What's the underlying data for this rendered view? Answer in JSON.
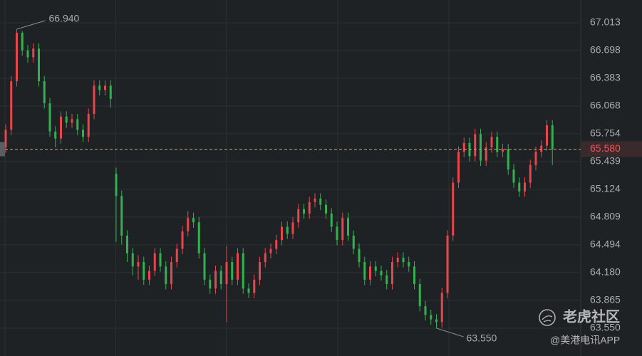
{
  "chart_data": {
    "type": "candlestick",
    "up_color": "#e8454d",
    "down_color": "#33b14f",
    "ylim": [
      63.235,
      67.271
    ],
    "yticks": [
      67.013,
      66.698,
      66.383,
      66.068,
      65.754,
      65.439,
      65.124,
      64.809,
      64.494,
      {
        "value": 64.18,
        "label": "64.180"
      },
      63.865,
      {
        "value": 63.55,
        "label": "63.550"
      }
    ],
    "grid": true,
    "last": {
      "value": 65.58,
      "label": "65.580"
    },
    "high_label": {
      "value": 66.94,
      "label": "66.940"
    },
    "low_label": {
      "value": 63.55,
      "label": "63.550"
    },
    "candles": [
      [
        65.6,
        65.86,
        65.54,
        65.8
      ],
      [
        65.8,
        66.41,
        65.74,
        66.35
      ],
      [
        66.35,
        66.94,
        66.29,
        66.9
      ],
      [
        66.9,
        66.92,
        66.64,
        66.7
      ],
      [
        66.7,
        66.76,
        66.56,
        66.62
      ],
      [
        66.62,
        66.78,
        66.56,
        66.72
      ],
      [
        66.72,
        66.78,
        66.29,
        66.35
      ],
      [
        66.35,
        66.41,
        66.04,
        66.1
      ],
      [
        66.1,
        66.16,
        65.72,
        65.78
      ],
      [
        65.78,
        65.84,
        65.6,
        65.7
      ],
      [
        65.7,
        66.01,
        65.64,
        65.95
      ],
      [
        65.95,
        66.01,
        65.82,
        65.88
      ],
      [
        65.88,
        65.98,
        65.82,
        65.92
      ],
      [
        65.92,
        65.98,
        65.74,
        65.8
      ],
      [
        65.8,
        65.86,
        65.66,
        65.72
      ],
      [
        65.72,
        66.04,
        65.66,
        65.98
      ],
      [
        65.98,
        66.36,
        65.92,
        66.3
      ],
      [
        66.3,
        66.36,
        66.19,
        66.25
      ],
      [
        66.25,
        66.36,
        66.19,
        66.3
      ],
      [
        66.3,
        66.36,
        66.05,
        66.15
      ],
      [
        65.3,
        65.37,
        64.53,
        65.05
      ],
      [
        65.05,
        65.11,
        64.5,
        64.6
      ],
      [
        64.6,
        64.66,
        64.3,
        64.4
      ],
      [
        64.4,
        64.46,
        64.15,
        64.25
      ],
      [
        64.25,
        64.38,
        64.1,
        64.3
      ],
      [
        64.3,
        64.36,
        64.04,
        64.1
      ],
      [
        64.1,
        64.26,
        64.04,
        64.2
      ],
      [
        64.2,
        64.46,
        64.14,
        64.4
      ],
      [
        64.4,
        64.46,
        64.19,
        64.25
      ],
      [
        64.25,
        64.31,
        63.99,
        64.05
      ],
      [
        64.05,
        64.36,
        63.99,
        64.3
      ],
      [
        64.3,
        64.51,
        64.24,
        64.45
      ],
      [
        64.45,
        64.71,
        64.39,
        64.65
      ],
      [
        64.65,
        64.88,
        64.59,
        64.8
      ],
      [
        64.8,
        64.86,
        64.69,
        64.75
      ],
      [
        64.75,
        64.81,
        64.34,
        64.4
      ],
      [
        64.4,
        64.46,
        64.04,
        64.1
      ],
      [
        64.1,
        64.16,
        63.94,
        64.0
      ],
      [
        64.0,
        64.26,
        63.94,
        64.2
      ],
      [
        64.2,
        64.26,
        63.99,
        64.05
      ],
      [
        64.05,
        64.48,
        63.62,
        64.3
      ],
      [
        64.3,
        64.36,
        64.04,
        64.1
      ],
      [
        64.1,
        64.46,
        64.04,
        64.4
      ],
      [
        64.4,
        64.46,
        63.94,
        64.0
      ],
      [
        64.0,
        64.06,
        63.89,
        63.95
      ],
      [
        63.95,
        64.16,
        63.89,
        64.1
      ],
      [
        64.1,
        64.36,
        64.04,
        64.3
      ],
      [
        64.3,
        64.46,
        64.24,
        64.4
      ],
      [
        64.4,
        64.51,
        64.34,
        64.45
      ],
      [
        64.45,
        64.61,
        64.39,
        64.55
      ],
      [
        64.55,
        64.76,
        64.49,
        64.7
      ],
      [
        64.7,
        64.76,
        64.56,
        64.62
      ],
      [
        64.62,
        64.81,
        64.56,
        64.75
      ],
      [
        64.75,
        64.96,
        64.69,
        64.9
      ],
      [
        64.9,
        64.96,
        64.79,
        64.85
      ],
      [
        64.85,
        65.04,
        64.79,
        64.98
      ],
      [
        64.98,
        65.08,
        64.92,
        65.02
      ],
      [
        65.02,
        65.08,
        64.89,
        64.95
      ],
      [
        64.95,
        65.01,
        64.79,
        64.85
      ],
      [
        64.85,
        64.91,
        64.64,
        64.7
      ],
      [
        64.7,
        64.76,
        64.49,
        64.55
      ],
      [
        64.55,
        64.86,
        64.49,
        64.8
      ],
      [
        64.8,
        64.86,
        64.54,
        64.6
      ],
      [
        64.6,
        64.66,
        64.39,
        64.45
      ],
      [
        64.45,
        64.51,
        64.24,
        64.3
      ],
      [
        64.3,
        64.36,
        64.04,
        64.1
      ],
      [
        64.1,
        64.31,
        64.04,
        64.25
      ],
      [
        64.25,
        64.31,
        64.14,
        64.2
      ],
      [
        64.2,
        64.26,
        64.09,
        64.15
      ],
      [
        64.15,
        64.21,
        63.99,
        64.05
      ],
      [
        64.05,
        64.36,
        63.99,
        64.3
      ],
      [
        64.3,
        64.41,
        64.24,
        64.35
      ],
      [
        64.35,
        64.41,
        64.24,
        64.3
      ],
      [
        64.3,
        64.36,
        64.19,
        64.25
      ],
      [
        64.25,
        64.31,
        63.99,
        64.05
      ],
      [
        64.05,
        64.11,
        63.74,
        63.8
      ],
      [
        63.8,
        63.86,
        63.64,
        63.7
      ],
      [
        63.7,
        63.76,
        63.59,
        63.65
      ],
      [
        63.65,
        63.71,
        63.55,
        63.62
      ],
      [
        63.62,
        64.01,
        63.56,
        63.95
      ],
      [
        63.95,
        64.66,
        63.89,
        64.6
      ],
      [
        64.6,
        65.26,
        64.54,
        65.2
      ],
      [
        65.2,
        65.61,
        65.14,
        65.55
      ],
      [
        65.55,
        65.71,
        65.49,
        65.65
      ],
      [
        65.65,
        65.71,
        65.44,
        65.5
      ],
      [
        65.5,
        65.81,
        65.44,
        65.75
      ],
      [
        65.75,
        65.81,
        65.39,
        65.45
      ],
      [
        65.45,
        65.66,
        65.39,
        65.6
      ],
      [
        65.6,
        65.78,
        65.54,
        65.72
      ],
      [
        65.72,
        65.78,
        65.49,
        65.55
      ],
      [
        65.55,
        65.64,
        65.49,
        65.58
      ],
      [
        65.58,
        65.64,
        65.29,
        65.35
      ],
      [
        65.35,
        65.41,
        65.14,
        65.2
      ],
      [
        65.2,
        65.26,
        65.04,
        65.1
      ],
      [
        65.1,
        65.26,
        65.04,
        65.2
      ],
      [
        65.2,
        65.46,
        65.14,
        65.4
      ],
      [
        65.4,
        65.61,
        65.34,
        65.55
      ],
      [
        65.55,
        65.68,
        65.49,
        65.62
      ],
      [
        65.62,
        65.91,
        65.56,
        65.85
      ],
      [
        65.85,
        65.91,
        65.4,
        65.58
      ]
    ]
  },
  "watermark": {
    "brand": "老虎社区",
    "source": "@美港电讯APP"
  }
}
